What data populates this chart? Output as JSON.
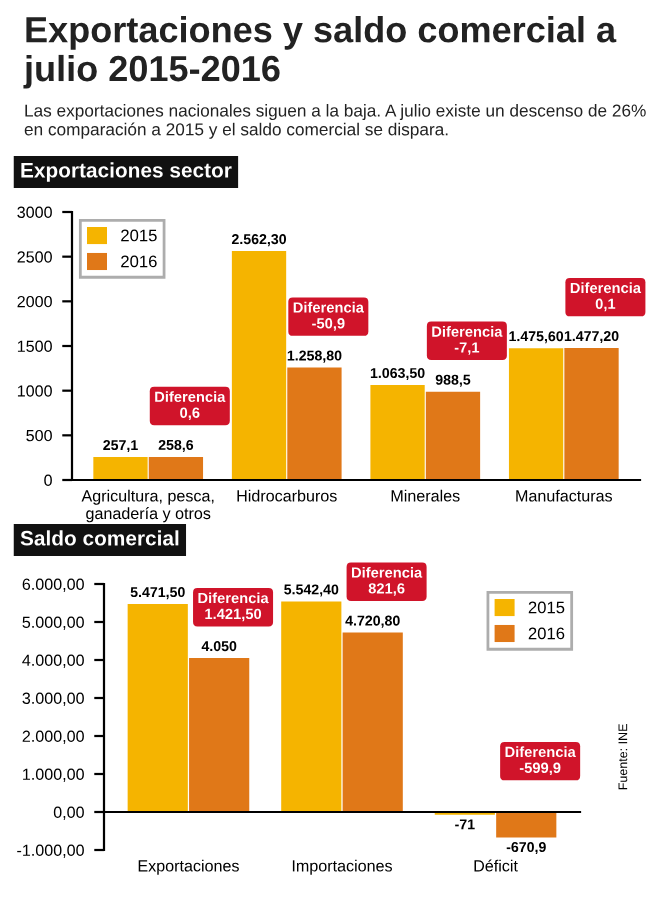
{
  "chart_data": [
    {
      "type": "bar",
      "title": "Exportaciones y saldo comercial a julio 2015-2016",
      "subtitle": "Las exportaciones nacionales siguen a la baja. A julio existe un descenso de 26% en comparación a 2015 y el saldo comercial se dispara.",
      "categories": [
        "Agricultura, pesca,\nganadería y otros",
        "Hidrocarburos",
        "Minerales",
        "Manufacturas"
      ],
      "series": [
        {
          "name": "2015",
          "color": "#f5b400",
          "values": [
            257.1,
            2562.3,
            1063.5,
            1475.6
          ],
          "value_labels": [
            "257,1",
            "2.562,30",
            "1.063,50",
            "1.475,60"
          ]
        },
        {
          "name": "2016",
          "color": "#e07818",
          "values": [
            258.6,
            1258.8,
            988.5,
            1477.2
          ],
          "value_labels": [
            "258,6",
            "1.258,80",
            "988,5",
            "1.477,20"
          ]
        }
      ],
      "ylim": [
        0,
        3000
      ],
      "yticks": [
        0,
        500,
        1000,
        1500,
        2000,
        2500,
        3000
      ],
      "legend": "top left",
      "annotations": [
        "Diferencia\n0,6",
        "Diferencia\n-50,9",
        "Diferencia\n-7,1",
        "Diferencia\n0,1",
        "Exportaciones sector"
      ]
    },
    {
      "type": "bar",
      "title": "Saldo comercial",
      "categories": [
        "Exportaciones",
        "Importaciones",
        "Déficit"
      ],
      "series": [
        {
          "name": "2015",
          "color": "#f5b400",
          "values": [
            5471.5,
            5542.4,
            -71
          ],
          "value_labels": [
            "5.471,50",
            "5.542,40",
            "-71"
          ]
        },
        {
          "name": "2016",
          "color": "#e07818",
          "values": [
            4050,
            4720.8,
            -670.9
          ],
          "value_labels": [
            "4.050",
            "4.720,80",
            "-670,9"
          ]
        }
      ],
      "ylim": [
        -1000,
        6000
      ],
      "yticks": [
        {
          "value": -1000,
          "label": "-1.000,00"
        },
        {
          "value": 0,
          "label": "0,00"
        },
        {
          "value": 1000,
          "label": "1.000,00"
        },
        {
          "value": 2000,
          "label": "2.000,00"
        },
        {
          "value": 3000,
          "label": "3.000,00"
        },
        {
          "value": 4000,
          "label": "4.000,00"
        },
        {
          "value": 5000,
          "label": "5.000,00"
        },
        {
          "value": 6000,
          "label": "6.000,00"
        }
      ],
      "legend": "top right",
      "annotations": [
        "Diferencia\n1.421,50",
        "Diferencia\n821,6",
        "Diferencia\n-599,9",
        "Fuente: INE"
      ]
    }
  ]
}
